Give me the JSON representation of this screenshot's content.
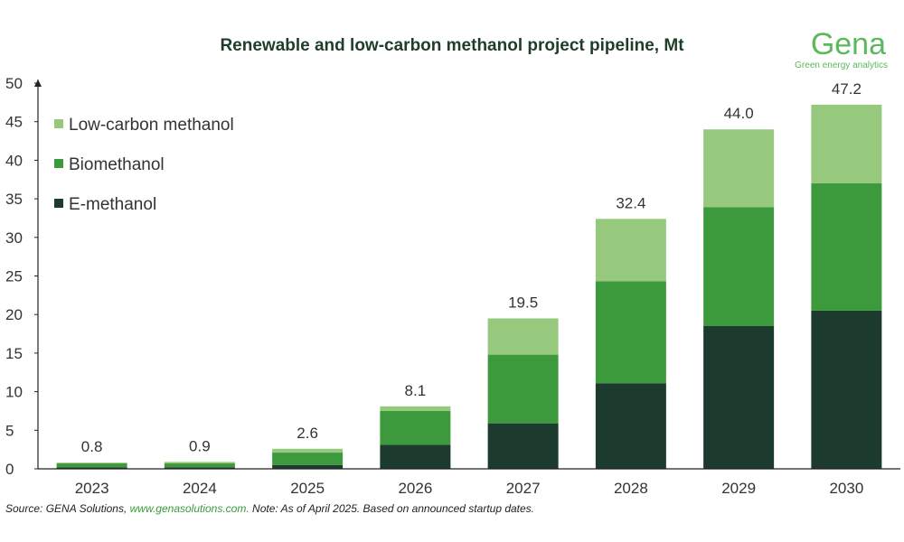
{
  "logo": {
    "name": "Gena",
    "tagline": "Green energy analytics"
  },
  "source": {
    "prefix": "Source: GENA Solutions, ",
    "link": "www.genasolutions.com.",
    "note": " Note: As of April 2025. Based on announced startup dates."
  },
  "chart_data": {
    "type": "bar",
    "stacked": true,
    "title": "Renewable and low-carbon methanol project pipeline, Mt",
    "xlabel": "",
    "ylabel": "",
    "ylim": [
      0,
      50
    ],
    "yticks": [
      0,
      5,
      10,
      15,
      20,
      25,
      30,
      35,
      40,
      45,
      50
    ],
    "grid": false,
    "legend_position": "top-left",
    "categories": [
      "2023",
      "2024",
      "2025",
      "2026",
      "2027",
      "2028",
      "2029",
      "2030"
    ],
    "series": [
      {
        "name": "E-methanol",
        "color": "#1c3b2e",
        "values": [
          0.2,
          0.2,
          0.5,
          3.1,
          5.9,
          11.1,
          18.5,
          20.5
        ]
      },
      {
        "name": "Biomethanol",
        "color": "#3c9a3c",
        "values": [
          0.5,
          0.5,
          1.6,
          4.4,
          8.9,
          13.2,
          15.4,
          16.5
        ]
      },
      {
        "name": "Low-carbon methanol",
        "color": "#96c97d",
        "values": [
          0.1,
          0.2,
          0.5,
          0.6,
          4.7,
          8.1,
          10.1,
          10.2
        ]
      }
    ],
    "totals": [
      "0.8",
      "0.9",
      "2.6",
      "8.1",
      "19.5",
      "32.4",
      "44.0",
      "47.2"
    ],
    "legend_order": [
      "Low-carbon methanol",
      "Biomethanol",
      "E-methanol"
    ]
  }
}
